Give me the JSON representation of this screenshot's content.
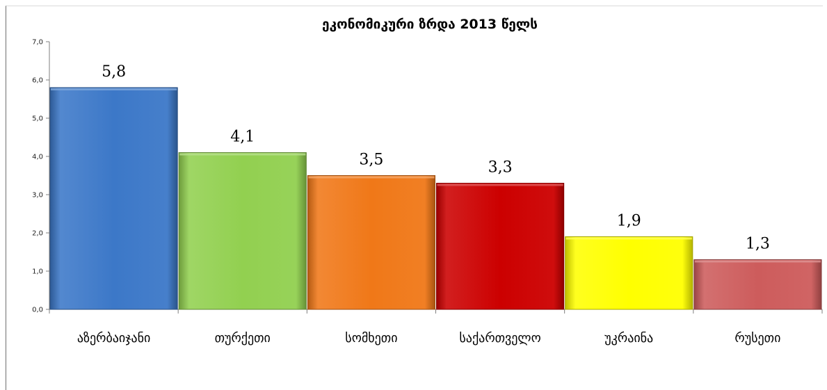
{
  "chart_data": {
    "type": "bar",
    "title": "ეკონომიკური ზრდა 2013 წელს",
    "categories": [
      "აზერბაიჯანი",
      "თურქეთი",
      "სომხეთი",
      "საქართველო",
      "უკრაინა",
      "რუსეთი"
    ],
    "values": [
      5.8,
      4.1,
      3.5,
      3.3,
      1.9,
      1.3
    ],
    "value_labels": [
      "5,8",
      "4,1",
      "3,5",
      "3,3",
      "1,9",
      "1,3"
    ],
    "ylim": [
      0,
      7
    ],
    "yticks": [
      "0,0",
      "1,0",
      "2,0",
      "3,0",
      "4,0",
      "5,0",
      "6,0",
      "7,0"
    ],
    "xlabel": "",
    "ylabel": "",
    "grid": false,
    "legend": "none",
    "colors": [
      "#3c78c8",
      "#92d050",
      "#f07818",
      "#cc0000",
      "#ffff00",
      "#cd5c5c"
    ]
  }
}
